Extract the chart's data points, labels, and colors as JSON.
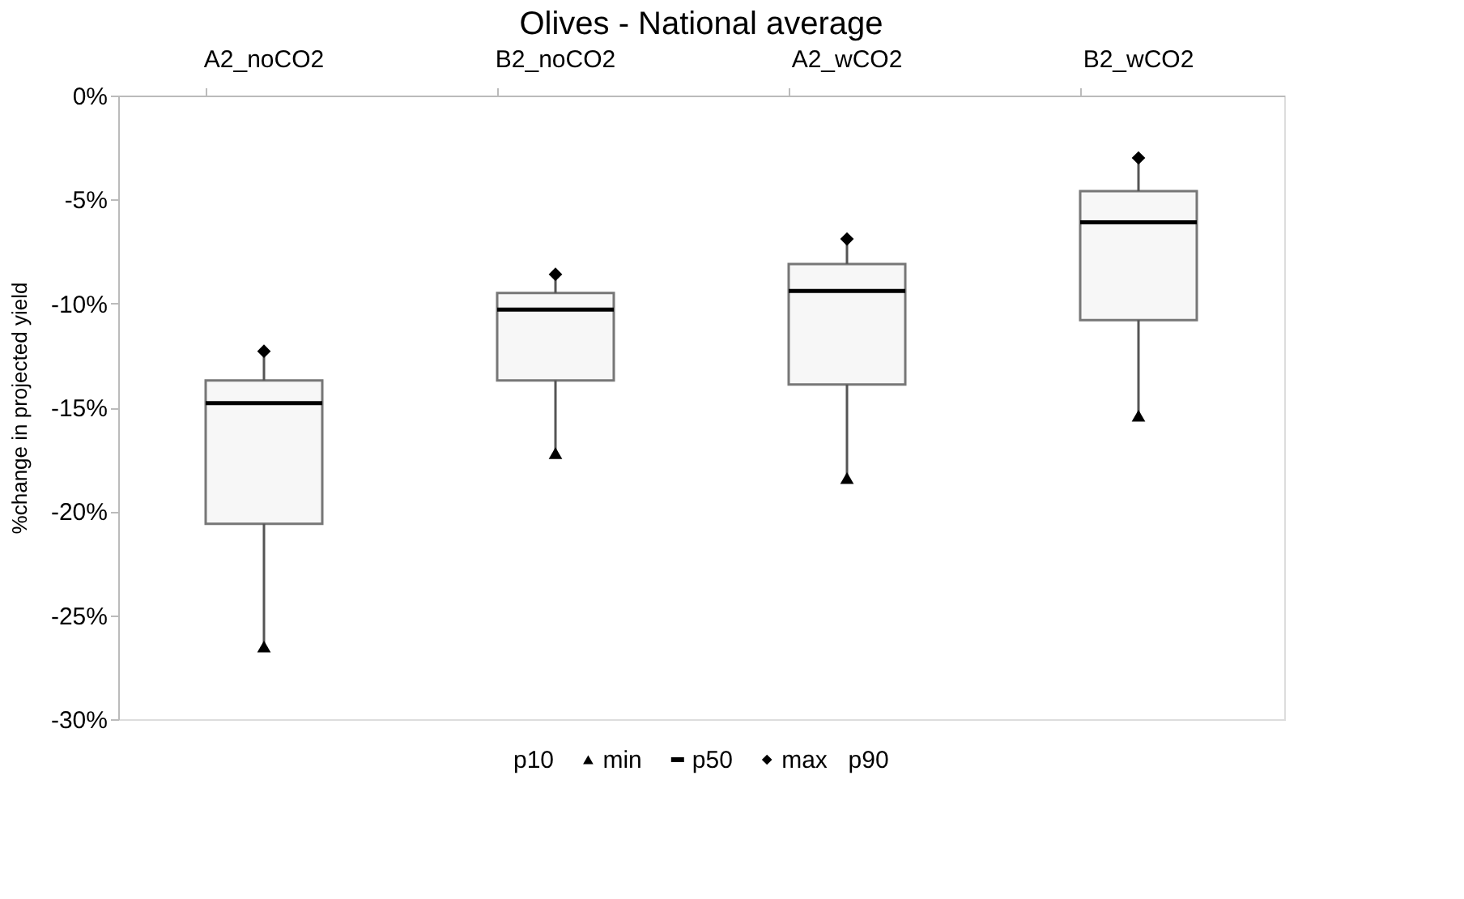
{
  "chart_data": {
    "type": "box",
    "title": "Olives - National average",
    "ylabel": "%change in projected yield",
    "categories": [
      "A2_noCO2",
      "B2_noCO2",
      "A2_wCO2",
      "B2_wCO2"
    ],
    "boxes": [
      {
        "low": -26.5,
        "q1": -20.6,
        "median": -14.8,
        "q3": -13.7,
        "high": -12.3
      },
      {
        "low": -17.2,
        "q1": -13.7,
        "median": -10.3,
        "q3": -9.5,
        "high": -8.6
      },
      {
        "low": -18.4,
        "q1": -13.9,
        "median": -9.4,
        "q3": -8.1,
        "high": -6.9
      },
      {
        "low": -15.4,
        "q1": -10.8,
        "median": -6.1,
        "q3": -4.6,
        "high": -3.0
      }
    ],
    "series": [
      {
        "name": "min",
        "type": "scatter",
        "marker": "triangle",
        "color": "#000000",
        "x": [
          "A2_noCO2",
          "B2_noCO2",
          "A2_wCO2",
          "B2_wCO2"
        ],
        "values": [
          -26.5,
          -17.2,
          -18.4,
          -15.4
        ]
      },
      {
        "name": "max",
        "type": "scatter",
        "marker": "diamond",
        "color": "#000000",
        "x": [
          "A2_noCO2",
          "B2_noCO2",
          "A2_wCO2",
          "B2_wCO2"
        ],
        "values": [
          -12.3,
          -8.6,
          -6.9,
          -3.0
        ]
      }
    ],
    "annotations": [
      "p10",
      "p50",
      "p90"
    ],
    "ylim": [
      -30,
      0
    ],
    "yticks": [
      {
        "value": 0,
        "label": "0%"
      },
      {
        "value": -5,
        "label": "-5%"
      },
      {
        "value": -10,
        "label": "-10%"
      },
      {
        "value": -15,
        "label": "-15%"
      },
      {
        "value": -20,
        "label": "-20%"
      },
      {
        "value": -25,
        "label": "-25%"
      },
      {
        "value": -30,
        "label": "-30%"
      }
    ],
    "grid": false,
    "legend": "bottom"
  }
}
